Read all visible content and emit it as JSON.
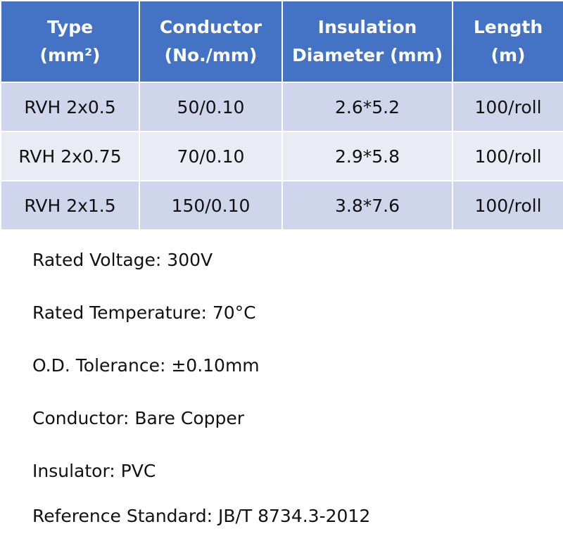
{
  "table": {
    "headers": [
      [
        "Type",
        "(mm²)"
      ],
      [
        "Conductor",
        "(No./mm)"
      ],
      [
        "Insulation",
        "Diameter (mm)"
      ],
      [
        "Length",
        "(m)"
      ]
    ],
    "rows": [
      [
        "RVH 2x0.5",
        "50/0.10",
        "2.6*5.2",
        "100/roll"
      ],
      [
        "RVH 2x0.75",
        "70/0.10",
        "2.9*5.8",
        "100/roll"
      ],
      [
        "RVH 2x1.5",
        "150/0.10",
        "3.8*7.6",
        "100/roll"
      ]
    ]
  },
  "specs": [
    "Rated Voltage: 300V",
    "Rated Temperature: 70°C",
    "O.D. Tolerance: ±0.10mm",
    "Conductor: Bare Copper",
    "Insulator: PVC",
    "Reference Standard: JB/T 8734.3-2012"
  ]
}
